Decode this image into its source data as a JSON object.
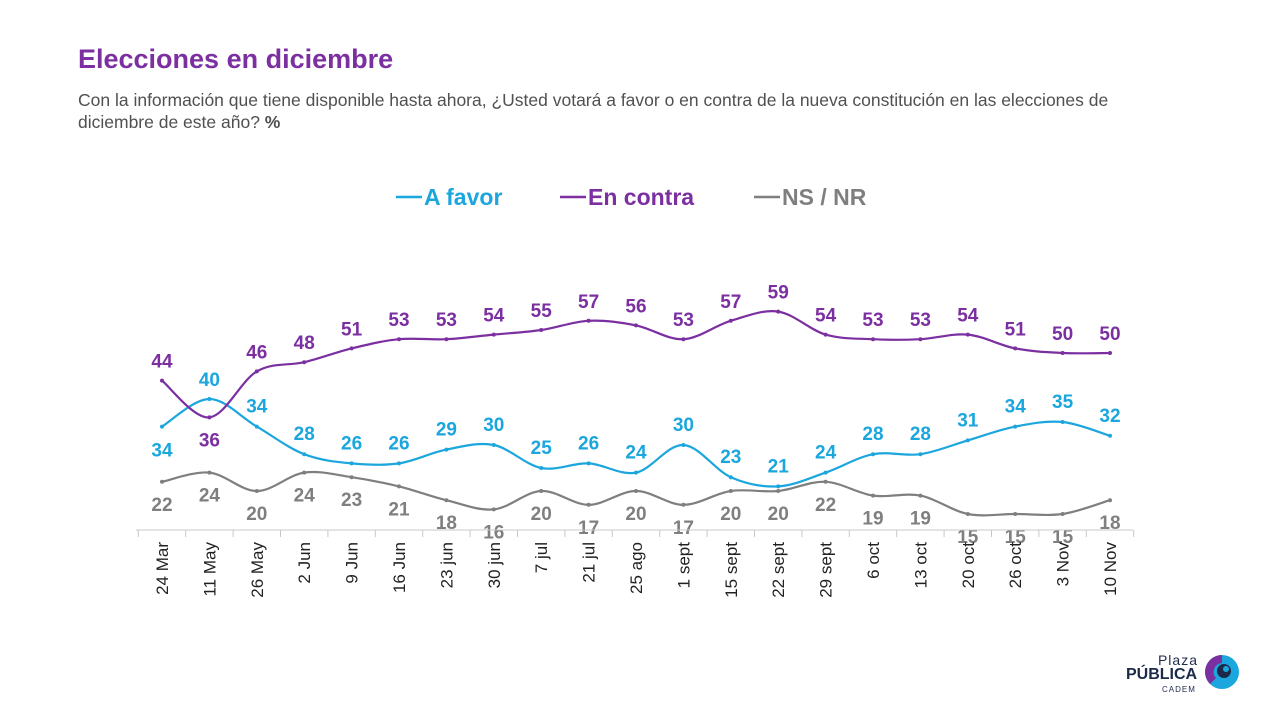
{
  "header": {
    "title": "Elecciones en diciembre",
    "subtitle": "Con la información que tiene disponible hasta ahora, ¿Usted votará a favor o en contra de la nueva constitución en las elecciones de diciembre de este año?",
    "unit": "%"
  },
  "logo": {
    "line1": "Plaza",
    "line2": "PÚBLICA",
    "line3": "CADEM"
  },
  "chart_data": {
    "type": "line",
    "categories": [
      "24 Mar",
      "11 May",
      "26 May",
      "2 Jun",
      "9 Jun",
      "16 Jun",
      "23 jun",
      "30 jun",
      "7 jul",
      "21 jul",
      "25 ago",
      "1 sept",
      "15 sept",
      "22 sept",
      "29 sept",
      "6 oct",
      "13 oct",
      "20 oct",
      "26 oct",
      "3 Nov",
      "10 Nov"
    ],
    "legend_position": "top-center",
    "grid": false,
    "ylim": [
      0,
      70
    ],
    "series": [
      {
        "name": "A favor",
        "color": "#1ba6dd",
        "values": [
          34,
          40,
          34,
          28,
          26,
          26,
          29,
          30,
          25,
          26,
          24,
          30,
          23,
          21,
          24,
          28,
          28,
          31,
          34,
          35,
          32
        ]
      },
      {
        "name": "En contra",
        "color": "#7b2fa0",
        "values": [
          44,
          36,
          46,
          48,
          51,
          53,
          53,
          54,
          55,
          57,
          56,
          53,
          57,
          59,
          54,
          53,
          53,
          54,
          51,
          50,
          50
        ]
      },
      {
        "name": "NS / NR",
        "color": "#7f7f7f",
        "values": [
          22,
          24,
          20,
          24,
          23,
          21,
          18,
          16,
          20,
          17,
          20,
          17,
          20,
          20,
          22,
          19,
          19,
          15,
          15,
          15,
          18
        ]
      }
    ]
  }
}
